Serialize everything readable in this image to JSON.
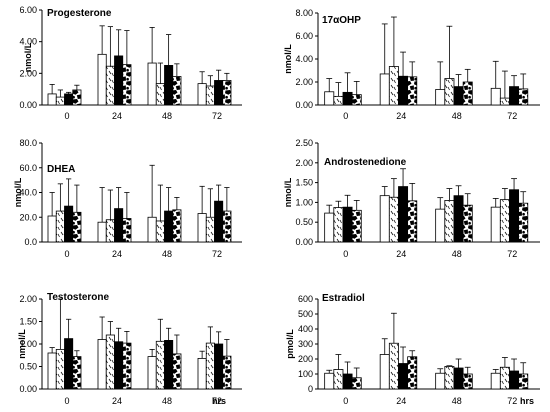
{
  "patterns": [
    "white",
    "dashes",
    "black",
    "cow-spots"
  ],
  "chart_data": [
    {
      "type": "bar",
      "title": "Progesterone",
      "title_sub": "",
      "ylabel": "nmol/L",
      "ylim": [
        0,
        6
      ],
      "yticks": [
        "0.00",
        "2.00",
        "4.00",
        "6.00"
      ],
      "categories": [
        "0",
        "24",
        "48",
        "72"
      ],
      "unit_label": "",
      "values": [
        [
          0.7,
          0.5,
          0.7,
          0.95
        ],
        [
          3.2,
          2.45,
          3.1,
          2.55
        ],
        [
          2.65,
          1.35,
          2.5,
          1.8
        ],
        [
          1.35,
          1.2,
          1.55,
          1.55
        ]
      ],
      "errors": [
        [
          1.3,
          0.95,
          0.8,
          1.25
        ],
        [
          5.0,
          4.95,
          4.75,
          4.7
        ],
        [
          4.9,
          2.65,
          4.45,
          2.6
        ],
        [
          2.1,
          1.85,
          2.2,
          2.0
        ]
      ]
    },
    {
      "type": "bar",
      "title": "17",
      "title_sub": "αOHP",
      "ylabel": "nmol/L",
      "ylim": [
        0,
        8
      ],
      "yticks": [
        "0.00",
        "2.00",
        "4.00",
        "6.00",
        "8.00"
      ],
      "categories": [
        "0",
        "24",
        "48",
        "72"
      ],
      "unit_label": "",
      "values": [
        [
          1.15,
          0.75,
          1.1,
          0.9
        ],
        [
          2.7,
          3.35,
          2.5,
          2.45
        ],
        [
          1.35,
          2.3,
          1.6,
          2.0
        ],
        [
          1.45,
          0.6,
          1.6,
          1.4
        ]
      ],
      "errors": [
        [
          2.3,
          1.95,
          2.8,
          2.05
        ],
        [
          7.05,
          7.65,
          4.6,
          3.75
        ],
        [
          3.75,
          6.85,
          2.65,
          3.1
        ],
        [
          3.8,
          2.95,
          2.55,
          2.7
        ]
      ]
    },
    {
      "type": "bar",
      "title": "DHEA",
      "title_sub": "",
      "ylabel": "nmol/L",
      "ylim": [
        0,
        80
      ],
      "yticks": [
        "0.0",
        "20.0",
        "40.0",
        "60.0",
        "80.0"
      ],
      "categories": [
        "0",
        "24",
        "48",
        "72"
      ],
      "unit_label": "",
      "values": [
        [
          21,
          25,
          29,
          24
        ],
        [
          16,
          18,
          27,
          19
        ],
        [
          20,
          17,
          25,
          26
        ],
        [
          23,
          20,
          33,
          25
        ]
      ],
      "errors": [
        [
          40,
          47,
          51,
          46
        ],
        [
          44,
          42,
          44,
          40
        ],
        [
          62,
          46,
          44,
          36
        ],
        [
          45,
          43,
          46,
          44
        ]
      ]
    },
    {
      "type": "bar",
      "title": "Androstenedione",
      "title_sub": "",
      "ylabel": "nmol/L",
      "ylim": [
        0,
        2.5
      ],
      "yticks": [
        "0.00",
        "0.50",
        "1.00",
        "1.50",
        "2.00",
        "2.50"
      ],
      "categories": [
        "0",
        "24",
        "48",
        "72"
      ],
      "unit_label": "",
      "values": [
        [
          0.73,
          0.87,
          0.88,
          0.8
        ],
        [
          1.17,
          1.13,
          1.4,
          1.04
        ],
        [
          0.83,
          1.05,
          1.17,
          0.93
        ],
        [
          0.88,
          1.07,
          1.32,
          0.98
        ]
      ],
      "errors": [
        [
          0.93,
          1.03,
          1.18,
          1.05
        ],
        [
          1.4,
          1.6,
          1.85,
          1.48
        ],
        [
          1.12,
          1.35,
          1.42,
          1.22
        ],
        [
          1.1,
          1.35,
          1.6,
          1.27
        ]
      ]
    },
    {
      "type": "bar",
      "title": "Testosterone",
      "title_sub": "",
      "ylabel": "nmol/L",
      "ylim": [
        0,
        2
      ],
      "yticks": [
        "0.00",
        "0.50",
        "1.00",
        "1.50",
        "2.00"
      ],
      "categories": [
        "0",
        "24",
        "48",
        "72"
      ],
      "unit_label": "hrs",
      "values": [
        [
          0.8,
          0.88,
          1.12,
          0.72
        ],
        [
          1.1,
          1.2,
          1.05,
          1.02
        ],
        [
          0.72,
          1.06,
          1.08,
          0.78
        ],
        [
          0.68,
          1.02,
          1.0,
          0.73
        ]
      ],
      "errors": [
        [
          0.92,
          2.0,
          1.55,
          0.85
        ],
        [
          1.6,
          1.5,
          1.35,
          1.28
        ],
        [
          0.88,
          1.55,
          1.35,
          1.2
        ],
        [
          0.84,
          1.38,
          1.27,
          1.1
        ]
      ]
    },
    {
      "type": "bar",
      "title": "Estradiol",
      "title_sub": "",
      "ylabel": "pmol/L",
      "ylim": [
        0,
        600
      ],
      "yticks": [
        "0",
        "100",
        "200",
        "300",
        "400",
        "500",
        "600"
      ],
      "categories": [
        "0",
        "24",
        "48",
        "72"
      ],
      "unit_label": "hrs",
      "values": [
        [
          105,
          130,
          100,
          75
        ],
        [
          230,
          305,
          170,
          215
        ],
        [
          105,
          150,
          140,
          100
        ],
        [
          105,
          145,
          120,
          100
        ]
      ],
      "errors": [
        [
          125,
          230,
          180,
          140
        ],
        [
          335,
          505,
          280,
          255
        ],
        [
          135,
          155,
          200,
          145
        ],
        [
          130,
          210,
          200,
          175
        ]
      ]
    }
  ]
}
